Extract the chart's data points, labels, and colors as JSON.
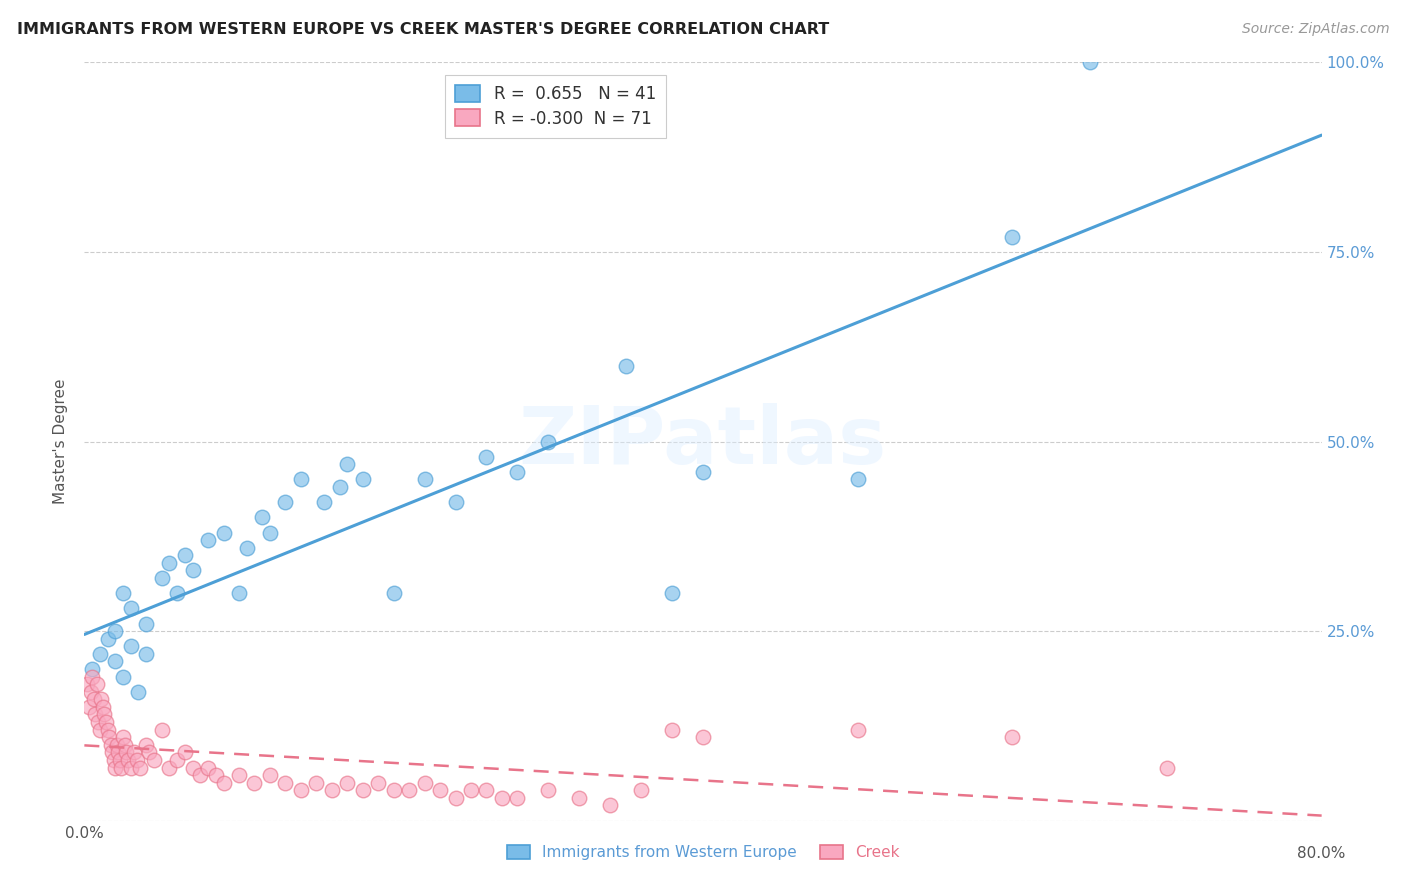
{
  "title": "IMMIGRANTS FROM WESTERN EUROPE VS CREEK MASTER'S DEGREE CORRELATION CHART",
  "source": "Source: ZipAtlas.com",
  "ylabel": "Master's Degree",
  "legend_label1": "Immigrants from Western Europe",
  "legend_label2": "Creek",
  "r1": 0.655,
  "n1": 41,
  "r2": -0.3,
  "n2": 71,
  "xmin": 0.0,
  "xmax": 0.8,
  "ymin": 0.0,
  "ymax": 1.0,
  "color_blue": "#7abce8",
  "color_pink": "#f9a8c0",
  "line_blue": "#4d9fd6",
  "line_pink": "#e8748a",
  "watermark_text": "ZIPatlas",
  "blue_scatter_x": [
    0.005,
    0.01,
    0.015,
    0.02,
    0.025,
    0.02,
    0.03,
    0.035,
    0.04,
    0.03,
    0.025,
    0.04,
    0.05,
    0.055,
    0.06,
    0.065,
    0.07,
    0.08,
    0.09,
    0.1,
    0.105,
    0.115,
    0.12,
    0.13,
    0.14,
    0.155,
    0.165,
    0.17,
    0.18,
    0.2,
    0.22,
    0.24,
    0.26,
    0.28,
    0.3,
    0.35,
    0.38,
    0.4,
    0.5,
    0.6,
    0.65
  ],
  "blue_scatter_y": [
    0.2,
    0.22,
    0.24,
    0.21,
    0.19,
    0.25,
    0.23,
    0.17,
    0.22,
    0.28,
    0.3,
    0.26,
    0.32,
    0.34,
    0.3,
    0.35,
    0.33,
    0.37,
    0.38,
    0.3,
    0.36,
    0.4,
    0.38,
    0.42,
    0.45,
    0.42,
    0.44,
    0.47,
    0.45,
    0.3,
    0.45,
    0.42,
    0.48,
    0.46,
    0.5,
    0.6,
    0.3,
    0.46,
    0.45,
    0.77,
    1.0
  ],
  "pink_scatter_x": [
    0.002,
    0.003,
    0.004,
    0.005,
    0.006,
    0.007,
    0.008,
    0.009,
    0.01,
    0.011,
    0.012,
    0.013,
    0.014,
    0.015,
    0.016,
    0.017,
    0.018,
    0.019,
    0.02,
    0.021,
    0.022,
    0.023,
    0.024,
    0.025,
    0.026,
    0.027,
    0.028,
    0.03,
    0.032,
    0.034,
    0.036,
    0.04,
    0.042,
    0.045,
    0.05,
    0.055,
    0.06,
    0.065,
    0.07,
    0.075,
    0.08,
    0.085,
    0.09,
    0.1,
    0.11,
    0.12,
    0.13,
    0.14,
    0.15,
    0.16,
    0.17,
    0.18,
    0.19,
    0.2,
    0.21,
    0.22,
    0.23,
    0.24,
    0.25,
    0.26,
    0.27,
    0.28,
    0.3,
    0.32,
    0.34,
    0.36,
    0.38,
    0.4,
    0.5,
    0.6,
    0.7
  ],
  "pink_scatter_y": [
    0.18,
    0.15,
    0.17,
    0.19,
    0.16,
    0.14,
    0.18,
    0.13,
    0.12,
    0.16,
    0.15,
    0.14,
    0.13,
    0.12,
    0.11,
    0.1,
    0.09,
    0.08,
    0.07,
    0.1,
    0.09,
    0.08,
    0.07,
    0.11,
    0.1,
    0.09,
    0.08,
    0.07,
    0.09,
    0.08,
    0.07,
    0.1,
    0.09,
    0.08,
    0.12,
    0.07,
    0.08,
    0.09,
    0.07,
    0.06,
    0.07,
    0.06,
    0.05,
    0.06,
    0.05,
    0.06,
    0.05,
    0.04,
    0.05,
    0.04,
    0.05,
    0.04,
    0.05,
    0.04,
    0.04,
    0.05,
    0.04,
    0.03,
    0.04,
    0.04,
    0.03,
    0.03,
    0.04,
    0.03,
    0.02,
    0.04,
    0.12,
    0.11,
    0.12,
    0.11,
    0.07
  ]
}
